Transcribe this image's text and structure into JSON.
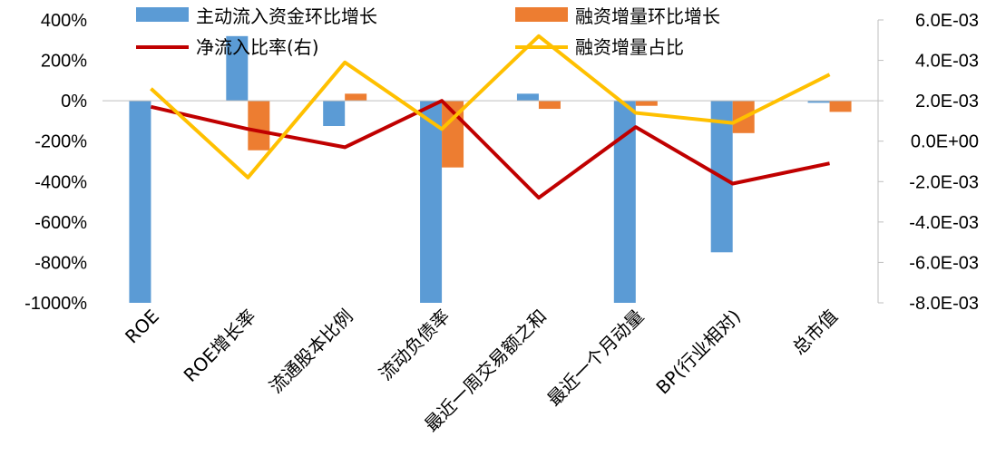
{
  "chart_data": {
    "type": "bar",
    "categories": [
      "ROE",
      "ROE增长率",
      "流通股本比例",
      "流动负债率",
      "最近一周交易额之和",
      "最近一个月动量",
      "BP(行业相对)",
      "总市值"
    ],
    "left_axis": {
      "ticks": [
        "400%",
        "200%",
        "0%",
        "-200%",
        "-400%",
        "-600%",
        "-800%",
        "-1000%"
      ],
      "range": [
        -1000,
        400
      ]
    },
    "right_axis": {
      "ticks": [
        "6.0E-03",
        "4.0E-03",
        "2.0E-03",
        "0.0E+00",
        "-2.0E-03",
        "-4.0E-03",
        "-6.0E-03",
        "-8.0E-03"
      ],
      "range": [
        -0.008,
        0.006
      ]
    },
    "series": [
      {
        "name": "主动流入资金环比增长",
        "type": "bar",
        "axis": "left",
        "color": "#5B9BD5",
        "values": [
          -1000,
          320,
          -125,
          -1000,
          35,
          -1000,
          -750,
          -10
        ]
      },
      {
        "name": "融资增量环比增长",
        "type": "bar",
        "axis": "left",
        "color": "#ED7D31",
        "values": [
          0,
          -245,
          35,
          -330,
          -40,
          -25,
          -160,
          -55
        ]
      },
      {
        "name": "净流入比率(右)",
        "type": "line",
        "axis": "right",
        "color": "#C00000",
        "values": [
          0.0017,
          0.0006,
          -0.0003,
          0.002,
          -0.0028,
          0.0007,
          -0.0021,
          -0.0011
        ]
      },
      {
        "name": "融资增量占比",
        "type": "line",
        "axis": "right",
        "color": "#FFC000",
        "values": [
          0.0026,
          -0.0018,
          0.0039,
          0.0006,
          0.0052,
          0.0014,
          0.0009,
          0.0033
        ]
      }
    ],
    "legend": "top",
    "grid": false
  }
}
